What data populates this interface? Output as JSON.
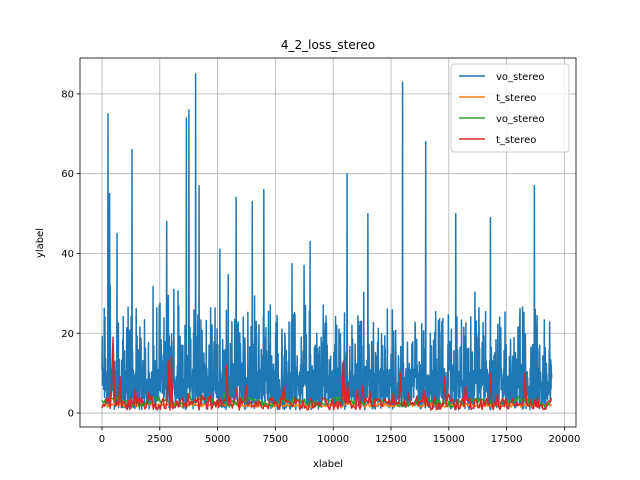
{
  "chart_data": {
    "type": "line",
    "title": "4_2_loss_stereo",
    "xlabel": "xlabel",
    "ylabel": "ylabel",
    "xlim": [
      -950,
      20500
    ],
    "ylim": [
      -3.5,
      89
    ],
    "xticks": [
      0,
      2500,
      5000,
      7500,
      10000,
      12500,
      15000,
      17500,
      20000
    ],
    "xtick_labels": [
      "0",
      "2500",
      "5000",
      "7500",
      "10000",
      "12500",
      "15000",
      "17500",
      "20000"
    ],
    "yticks": [
      0,
      20,
      40,
      60,
      80
    ],
    "ytick_labels": [
      "0",
      "20",
      "40",
      "60",
      "80"
    ],
    "grid": true,
    "legend_position": "top-right",
    "x_max": 19450,
    "series": [
      {
        "name": "vo_stereo",
        "color": "#1f77b4",
        "style": "noisy",
        "baseline": 6,
        "spread": 8,
        "peaks": [
          [
            260,
            75
          ],
          [
            330,
            55
          ],
          [
            650,
            45
          ],
          [
            1300,
            66
          ],
          [
            2800,
            48
          ],
          [
            3650,
            74
          ],
          [
            3760,
            76
          ],
          [
            4050,
            85
          ],
          [
            4200,
            57
          ],
          [
            5800,
            54
          ],
          [
            6500,
            53
          ],
          [
            7000,
            56
          ],
          [
            9000,
            43
          ],
          [
            10600,
            60
          ],
          [
            11500,
            50
          ],
          [
            13000,
            83
          ],
          [
            14000,
            68
          ],
          [
            15300,
            50
          ],
          [
            16800,
            49
          ],
          [
            18700,
            57
          ]
        ]
      },
      {
        "name": "t_stereo",
        "color": "#ff7f0e",
        "style": "flat",
        "baseline": 2,
        "spread": 0.5,
        "peaks": []
      },
      {
        "name": "vo_stereo",
        "color": "#2ca02c",
        "style": "smooth",
        "baseline": 2.8,
        "spread": 1.5,
        "peaks": [
          [
            3800,
            5
          ],
          [
            5300,
            5
          ]
        ]
      },
      {
        "name": "t_stereo",
        "color": "#d62728",
        "style": "spiky",
        "baseline": 2,
        "spread": 2,
        "peaks": [
          [
            400,
            8
          ],
          [
            500,
            19
          ],
          [
            800,
            9
          ],
          [
            2900,
            13
          ],
          [
            3000,
            14
          ],
          [
            5400,
            12
          ],
          [
            10450,
            13
          ],
          [
            12900,
            10
          ],
          [
            14800,
            9
          ],
          [
            16800,
            10
          ],
          [
            18300,
            10
          ]
        ]
      }
    ]
  }
}
